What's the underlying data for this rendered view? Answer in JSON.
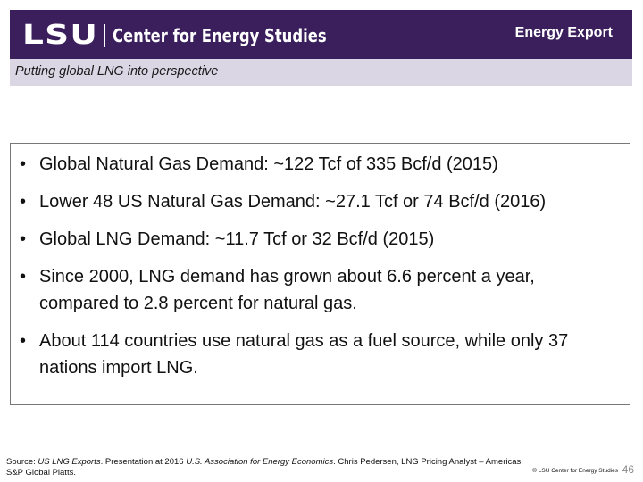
{
  "header": {
    "logo_mark": "LSU",
    "logo_text": "Center for Energy Studies",
    "section": "Energy Export",
    "subtitle": "Putting global LNG into perspective"
  },
  "bullets": [
    "Global Natural Gas Demand: ~122 Tcf of 335 Bcf/d (2015)",
    "Lower 48 US Natural Gas Demand: ~27.1 Tcf or 74 Bcf/d (2016)",
    "Global LNG Demand: ~11.7 Tcf or 32 Bcf/d (2015)",
    "Since 2000, LNG demand has grown about 6.6 percent a year, compared to 2.8 percent for natural gas.",
    "About 114 countries use natural gas as a fuel source, while only 37 nations import LNG."
  ],
  "footer": {
    "source_prefix": "Source: ",
    "source_title": "US LNG Exports",
    "source_mid1": ". Presentation at 2016 ",
    "source_org": "U.S. Association for Energy Economics",
    "source_mid2": ". Chris Pedersen, LNG Pricing Analyst – Americas.",
    "source_line2": "S&P Global Platts.",
    "copyright": "© LSU Center for Energy Studies",
    "page_number": "46"
  },
  "colors": {
    "banner": "#3a1f5c",
    "subtitle_bar": "#dad6e4"
  }
}
